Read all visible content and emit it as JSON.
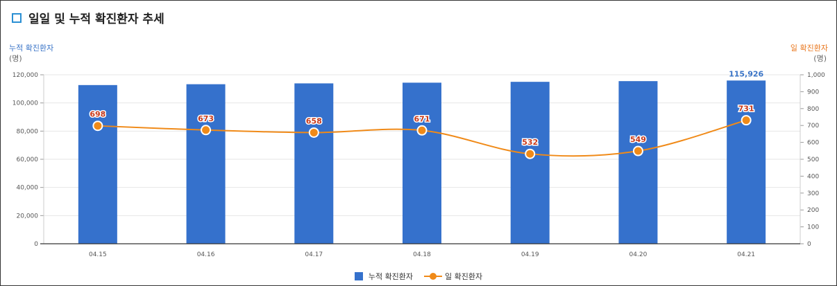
{
  "title": "일일 및 누적 확진환자 추세",
  "left_axis": {
    "title": "누적 확진환자",
    "unit": "(명)"
  },
  "right_axis": {
    "title": "일 확진환자",
    "unit": "(명)"
  },
  "colors": {
    "bar": "#3571cc",
    "line": "#f08a18",
    "line_label": "#c93a1a",
    "bar_label": "#3a74c7",
    "icon": "#2a8fd3"
  },
  "legend": {
    "bar_label": "누적 확진환자",
    "line_label": "일 확진환자"
  },
  "chart_data": {
    "type": "bar+line",
    "categories": [
      "04.15",
      "04.16",
      "04.17",
      "04.18",
      "04.19",
      "04.20",
      "04.21"
    ],
    "series": [
      {
        "name": "누적 확진환자",
        "type": "bar",
        "axis": "left",
        "values": [
          112700,
          113300,
          113900,
          114400,
          115000,
          115500,
          115926
        ],
        "data_labels": [
          "",
          "",
          "",
          "",
          "",
          "",
          "115,926"
        ]
      },
      {
        "name": "일 확진환자",
        "type": "line",
        "axis": "right",
        "values": [
          698,
          673,
          658,
          671,
          532,
          549,
          731
        ],
        "data_labels": [
          "698",
          "673",
          "658",
          "671",
          "532",
          "549",
          "731"
        ]
      }
    ],
    "left_ylim": [
      0,
      120000
    ],
    "left_ticks": [
      "0",
      "20,000",
      "40,000",
      "60,000",
      "80,000",
      "100,000",
      "120,000"
    ],
    "right_ylim": [
      0,
      1000
    ],
    "right_ticks": [
      "0",
      "100",
      "200",
      "300",
      "400",
      "500",
      "600",
      "700",
      "800",
      "900",
      "1,000"
    ],
    "grid": true,
    "legend_position": "bottom"
  }
}
